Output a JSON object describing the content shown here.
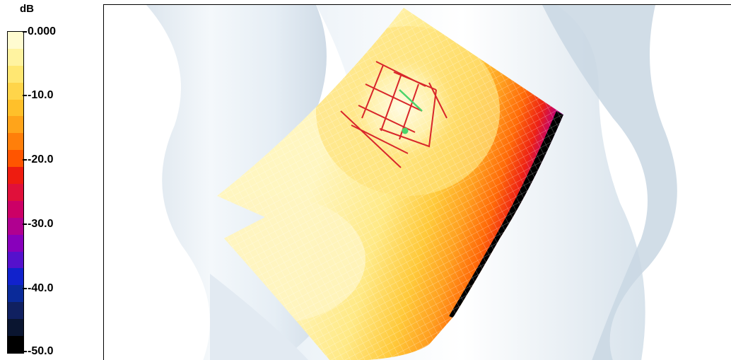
{
  "legend": {
    "unit": "dB",
    "ticks": [
      "0.000",
      "-10.0",
      "-20.0",
      "-30.0",
      "-40.0",
      "-50.0"
    ],
    "swatches": [
      "#fffbd0",
      "#fff3a0",
      "#ffe772",
      "#ffd54a",
      "#ffc02a",
      "#ffa41a",
      "#ff7f0a",
      "#ff5500",
      "#ee1c10",
      "#e0103a",
      "#cc0066",
      "#b00090",
      "#8800bb",
      "#5511cc",
      "#1122cc",
      "#0a2a99",
      "#102060",
      "#0a1530",
      "#000000"
    ]
  },
  "viewer": {
    "surface_colors": {
      "light": "#fff4b8",
      "mid": "#ffe070",
      "warm": "#ffc030",
      "orange": "#ff9020",
      "red": "#ee2010",
      "purple": "#8800bb",
      "dark": "#000000"
    }
  }
}
